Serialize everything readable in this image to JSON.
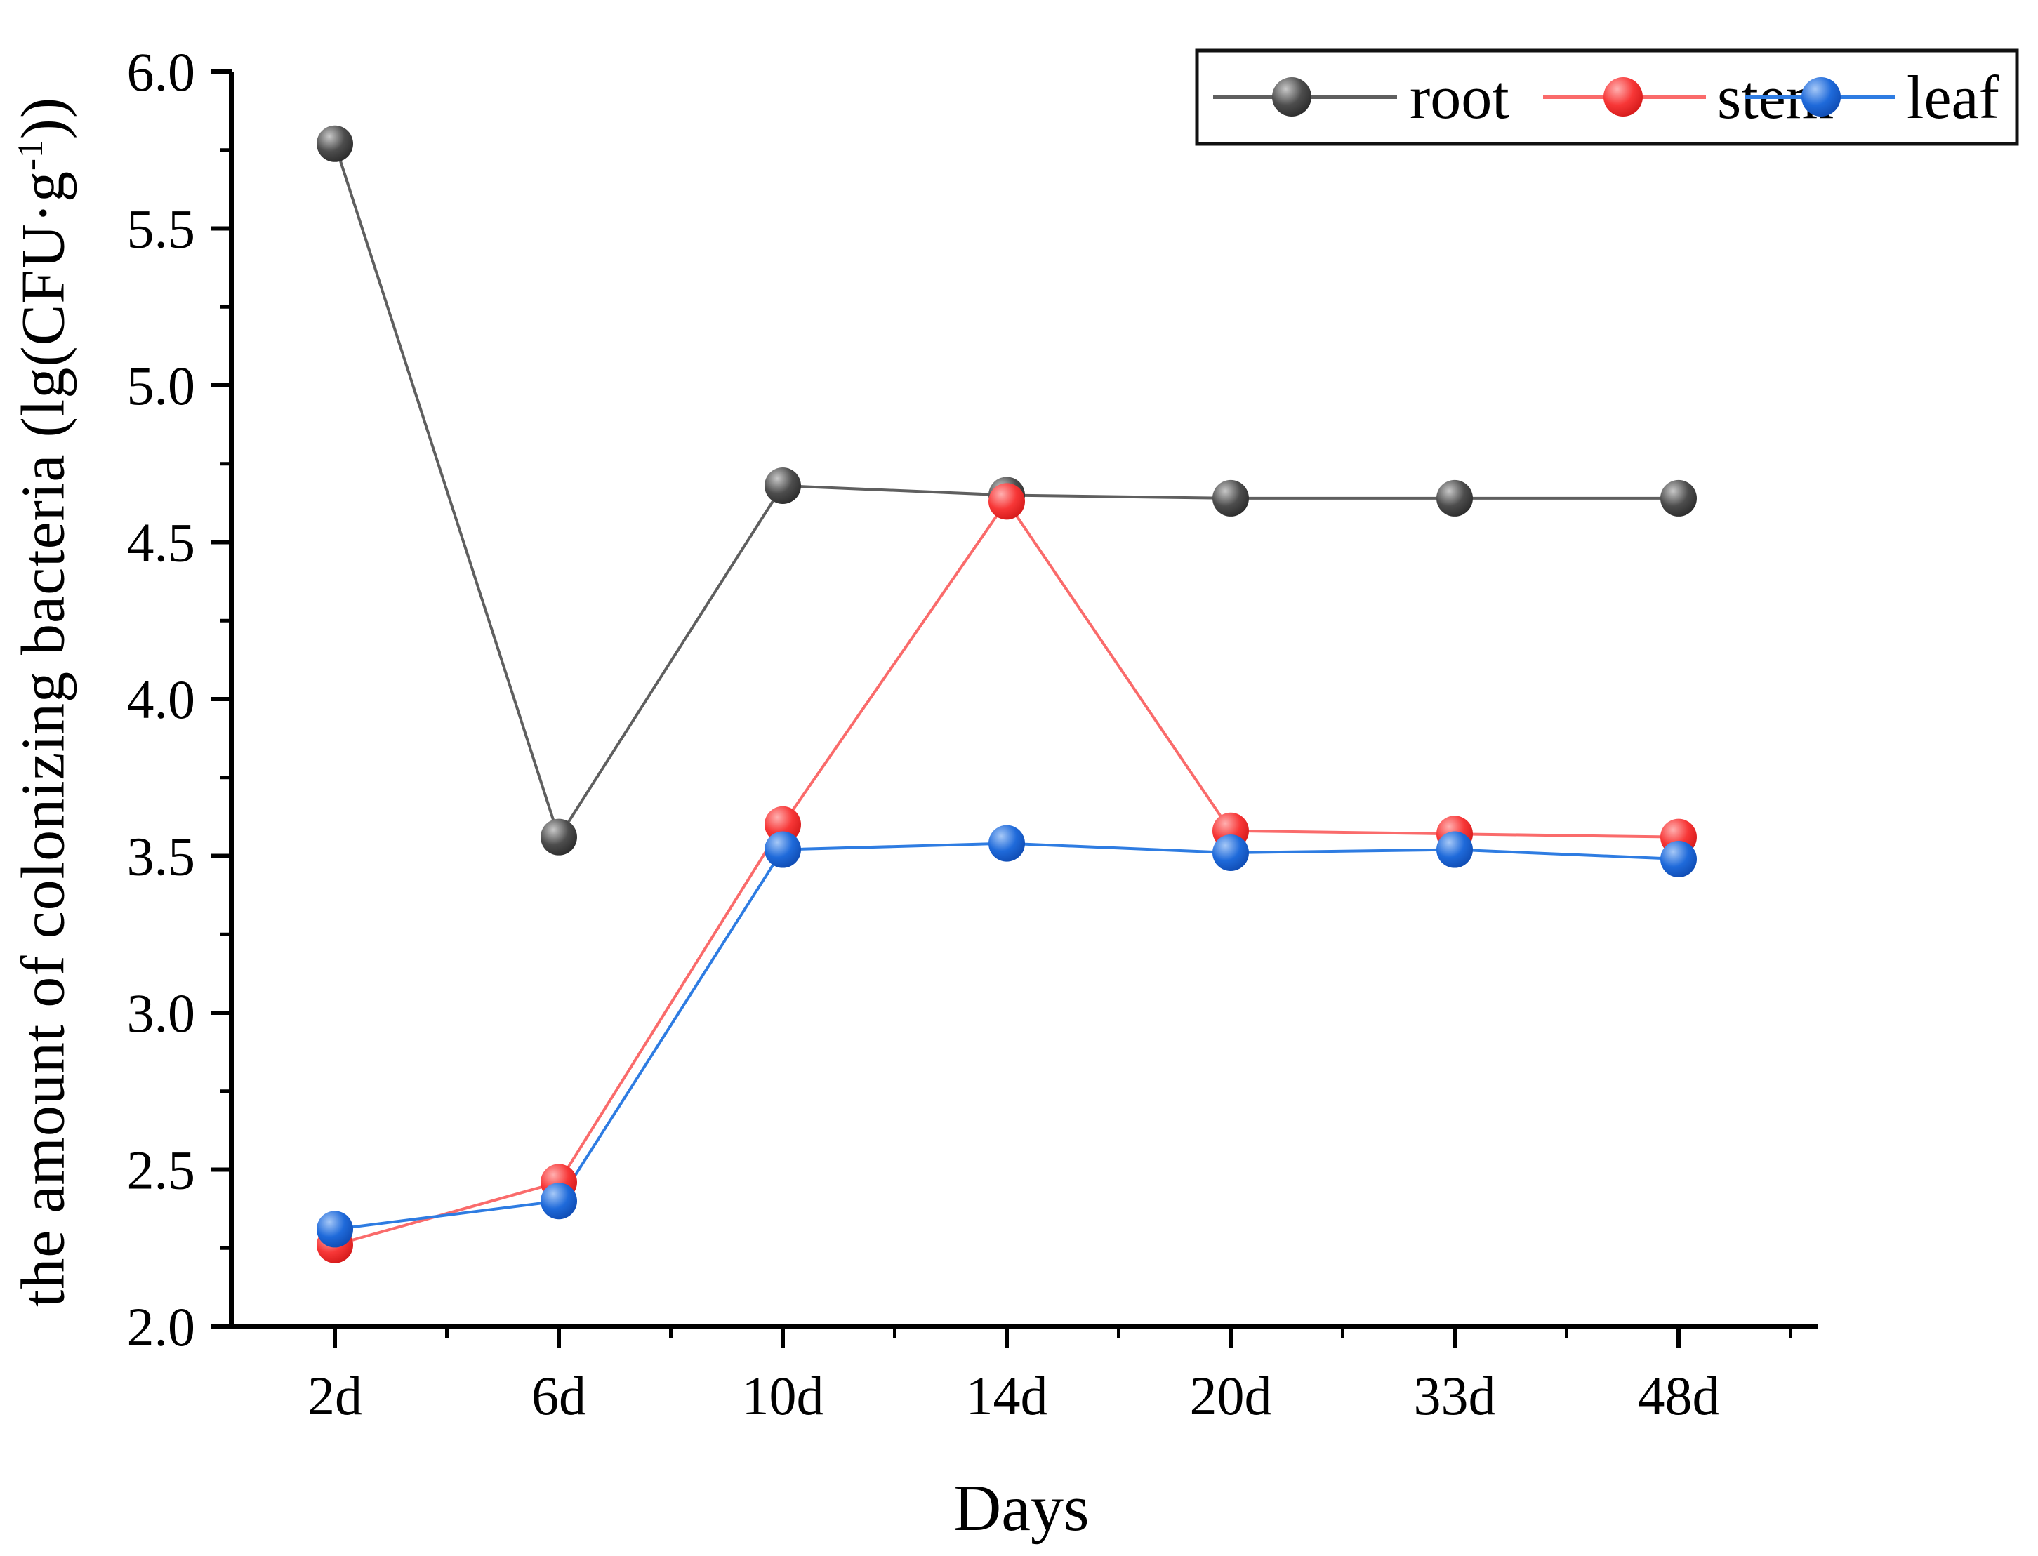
{
  "chart_data": {
    "type": "line",
    "title": "",
    "xlabel": "Days",
    "ylabel": "the amount of colonizing bacteria (lg(CFU·g⁻¹))",
    "ylabel_parts": {
      "prefix": "the amount of colonizing bacteria (lg(CFU·g",
      "superscript": "-1",
      "suffix": "))"
    },
    "categories": [
      "2d",
      "6d",
      "10d",
      "14d",
      "20d",
      "33d",
      "48d"
    ],
    "series": [
      {
        "name": "root",
        "line_color": "#5f5f5f",
        "marker_color": "#4d4d4d",
        "marker_highlight": "#c8c8c8",
        "marker_edge": "#262626",
        "values": [
          5.77,
          3.56,
          4.68,
          4.65,
          4.64,
          4.64,
          4.64
        ]
      },
      {
        "name": "stem",
        "line_color": "#fa6b6b",
        "marker_color": "#f73737",
        "marker_highlight": "#ffb0b0",
        "marker_edge": "#cf1515",
        "values": [
          2.26,
          2.46,
          3.6,
          4.63,
          3.58,
          3.57,
          3.56
        ]
      },
      {
        "name": "leaf",
        "line_color": "#2e7ce2",
        "marker_color": "#1f6ada",
        "marker_highlight": "#a6c8f7",
        "marker_edge": "#0d47ad",
        "values": [
          2.31,
          2.4,
          3.52,
          3.54,
          3.51,
          3.52,
          3.49
        ]
      }
    ],
    "ylim": [
      2.0,
      6.0
    ],
    "y_major_ticks": [
      "2.0",
      "2.5",
      "3.0",
      "3.5",
      "4.0",
      "4.5",
      "5.0",
      "5.5",
      "6.0"
    ],
    "y_tick_step": 0.5,
    "y_minor_step": 0.25,
    "grid": false,
    "legend_position": "top-right",
    "legend_labels": [
      "root",
      "stem",
      "leaf"
    ],
    "axis_color": "#000000",
    "background_color": "#ffffff"
  }
}
